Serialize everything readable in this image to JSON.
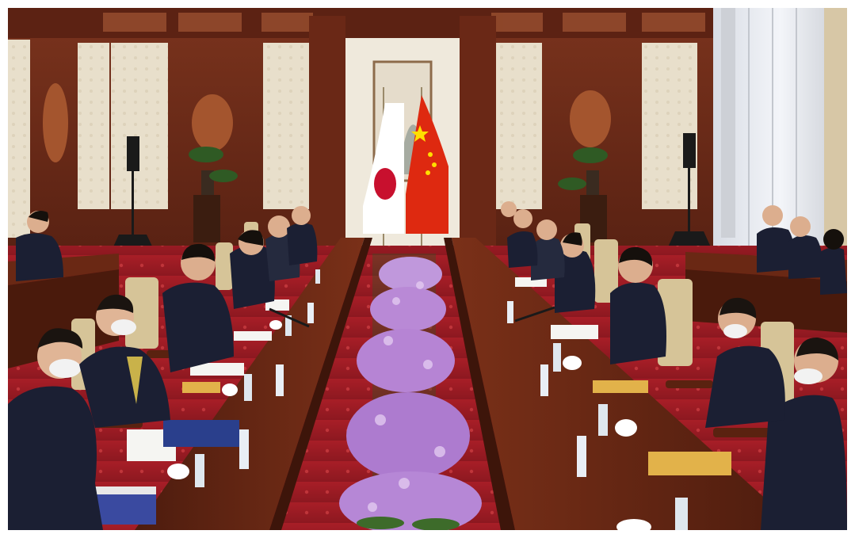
{
  "image": {
    "kind": "photograph",
    "subject": "bilateral-meeting-room",
    "colors": {
      "wall_wood": "#8a3e24",
      "wall_wood_dark": "#5e2414",
      "wall_panel": "#e6dcc8",
      "carpet": "#b3212a",
      "table_wood": "#6e2a16",
      "orchid": "#b985d6",
      "suit": "#1b1f33",
      "chair": "#d9c79a",
      "japan_red": "#c8102e",
      "china_red": "#de2910",
      "china_star": "#ffde00",
      "curtain": "#e8ecf2"
    },
    "flags": [
      {
        "country": "Japan"
      },
      {
        "country": "China"
      }
    ]
  }
}
